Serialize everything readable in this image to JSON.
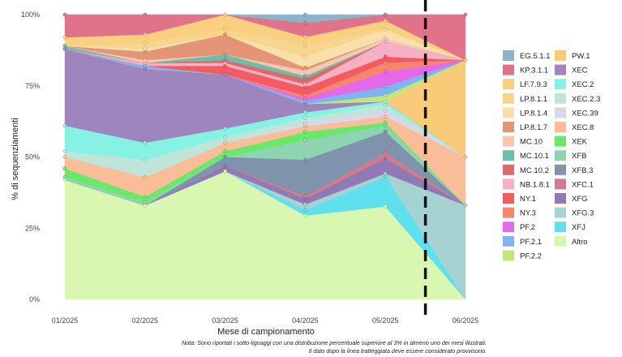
{
  "chart_data": {
    "type": "area",
    "stacked": true,
    "normalized": true,
    "xlabel": "Mese di campionamento",
    "ylabel": "% di sequenziamenti",
    "x": [
      "01/2025",
      "02/2025",
      "03/2025",
      "04/2025",
      "05/2025",
      "06/2025"
    ],
    "yticks": [
      "0%",
      "25%",
      "50%",
      "75%",
      "100%"
    ],
    "ylim": [
      0,
      100
    ],
    "grid": false,
    "provisional_after": "05/2025",
    "note_lines": [
      "Nota: Sono riportati i sotto-lignaggi con una distribuzione percentuale superiore al 3% in almeno uno dei mesi illustrati.",
      "Il dato dopo la linea tratteggiata deve essere considerato provvisorio."
    ],
    "legend_position": "right",
    "series": [
      {
        "name": "Altro",
        "color": "#d9f7b0",
        "values": [
          42,
          33,
          45,
          30,
          31,
          0
        ]
      },
      {
        "name": "XFJ",
        "color": "#5ee0ee",
        "values": [
          0,
          0,
          0,
          2,
          10,
          0
        ]
      },
      {
        "name": "XFG.3",
        "color": "#a6d2d2",
        "values": [
          0,
          0,
          0,
          2,
          1,
          33
        ]
      },
      {
        "name": "XFG",
        "color": "#8f7ab5",
        "values": [
          0,
          0,
          2,
          2,
          5,
          0
        ]
      },
      {
        "name": "XFC.1",
        "color": "#d47a8c",
        "values": [
          0,
          0,
          0,
          1,
          2,
          0
        ]
      },
      {
        "name": "XFB.3",
        "color": "#7f93ad",
        "values": [
          0,
          0,
          3,
          13,
          7,
          0
        ]
      },
      {
        "name": "XFB",
        "color": "#8ed3b2",
        "values": [
          1,
          1,
          0,
          7,
          2,
          0
        ]
      },
      {
        "name": "XEK",
        "color": "#6ae86a",
        "values": [
          3,
          2,
          2,
          3,
          1,
          0
        ]
      },
      {
        "name": "XEC.8",
        "color": "#f9be97",
        "values": [
          4,
          7,
          3,
          2,
          2,
          17
        ]
      },
      {
        "name": "XEC.39",
        "color": "#dcd6ed",
        "values": [
          0,
          0,
          0,
          1,
          2,
          0
        ]
      },
      {
        "name": "XEC.2.3",
        "color": "#bfe5d9",
        "values": [
          2,
          6,
          2,
          2,
          2,
          0
        ]
      },
      {
        "name": "XEC.2",
        "color": "#86f2e4",
        "values": [
          9,
          6,
          3,
          2,
          1,
          0
        ]
      },
      {
        "name": "XEC",
        "color": "#9e85be",
        "values": [
          27,
          26,
          19,
          3,
          0,
          0
        ]
      },
      {
        "name": "PW.1",
        "color": "#f8cb78",
        "values": [
          0,
          0,
          0,
          0,
          0,
          34
        ]
      },
      {
        "name": "PF.2.2",
        "color": "#c2e677",
        "values": [
          0,
          0,
          0,
          0,
          2,
          0
        ]
      },
      {
        "name": "PF.2.1",
        "color": "#80b3f2",
        "values": [
          0,
          1,
          0,
          1,
          3,
          0
        ]
      },
      {
        "name": "PF.2",
        "color": "#e468e8",
        "values": [
          0,
          0,
          0,
          1,
          5,
          0
        ]
      },
      {
        "name": "NY.3",
        "color": "#f4886c",
        "values": [
          0,
          0,
          0,
          1,
          3,
          0
        ]
      },
      {
        "name": "NY.1",
        "color": "#f25b62",
        "values": [
          0,
          0,
          3,
          3,
          2,
          0
        ]
      },
      {
        "name": "NB.1.8.1",
        "color": "#f6b0c6",
        "values": [
          0,
          1,
          1,
          1,
          5,
          0
        ]
      },
      {
        "name": "MC.10.2",
        "color": "#dd6b6b",
        "values": [
          0,
          0,
          1,
          2,
          0,
          0
        ]
      },
      {
        "name": "MC.10.1",
        "color": "#6cbdaa",
        "values": [
          1,
          0,
          2,
          1,
          0,
          0
        ]
      },
      {
        "name": "MC.10",
        "color": "#f8c6b2",
        "values": [
          0,
          1,
          0,
          2,
          1,
          0
        ]
      },
      {
        "name": "LP.8.1.7",
        "color": "#e49477",
        "values": [
          0,
          3,
          7,
          1,
          0,
          0
        ]
      },
      {
        "name": "LP.8.1.4",
        "color": "#f9e0aa",
        "values": [
          0,
          1,
          0,
          4,
          3,
          0
        ]
      },
      {
        "name": "LP.8.1.1",
        "color": "#f8d58e",
        "values": [
          0,
          2,
          2,
          4,
          0,
          0
        ]
      },
      {
        "name": "LF.7.9.3",
        "color": "#f8d080",
        "values": [
          3,
          3,
          5,
          3,
          3,
          0
        ]
      },
      {
        "name": "KP.3.1.1",
        "color": "#e0738a",
        "values": [
          8,
          7,
          0,
          5,
          2,
          16
        ]
      },
      {
        "name": "EG.5.1.1",
        "color": "#8fb3c6",
        "values": [
          0,
          0,
          0,
          3,
          0,
          0
        ]
      }
    ],
    "legend_left": [
      "EG.5.1.1",
      "KP.3.1.1",
      "LF.7.9.3",
      "LP.8.1.1",
      "LP.8.1.4",
      "LP.8.1.7",
      "MC.10",
      "MC.10.1",
      "MC.10.2",
      "NB.1.8.1",
      "NY.1",
      "NY.3",
      "PF.2",
      "PF.2.1",
      "PF.2.2"
    ],
    "legend_right": [
      "PW.1",
      "XEC",
      "XEC.2",
      "XEC.2.3",
      "XEC.39",
      "XEC.8",
      "XEK",
      "XFB",
      "XFB.3",
      "XFC.1",
      "XFG",
      "XFG.3",
      "XFJ",
      "Altro"
    ]
  }
}
